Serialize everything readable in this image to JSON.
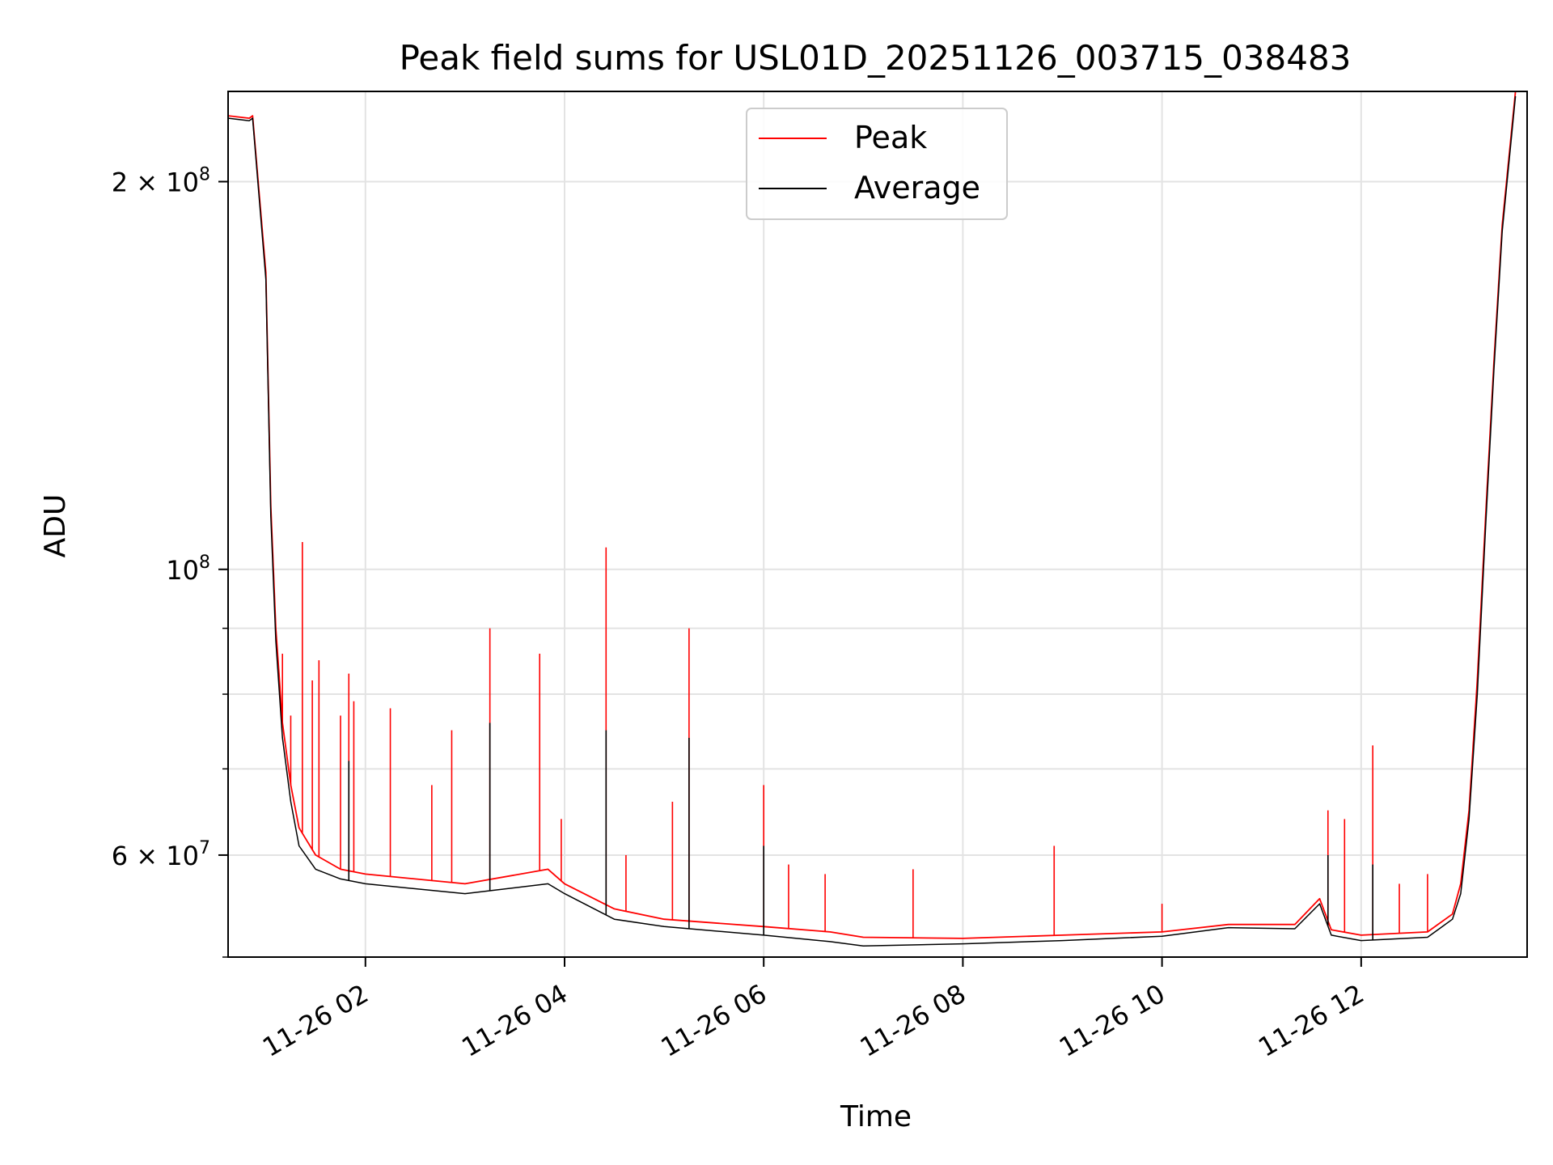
{
  "chart_data": {
    "type": "line",
    "title": "Peak field sums for USL01D_20251126_003715_038483",
    "xlabel": "Time",
    "ylabel": "ADU",
    "x_axis": {
      "type": "datetime",
      "range": [
        "2025-11-26T00:37:15",
        "2025-11-26T13:40:00"
      ],
      "ticks": [
        {
          "value": "2025-11-26T02:00:00",
          "label": "11-26 02"
        },
        {
          "value": "2025-11-26T04:00:00",
          "label": "11-26 04"
        },
        {
          "value": "2025-11-26T06:00:00",
          "label": "11-26 06"
        },
        {
          "value": "2025-11-26T08:00:00",
          "label": "11-26 08"
        },
        {
          "value": "2025-11-26T10:00:00",
          "label": "11-26 10"
        },
        {
          "value": "2025-11-26T12:00:00",
          "label": "11-26 12"
        }
      ]
    },
    "y_axis": {
      "scale": "log",
      "range": [
        50000000,
        235000000
      ],
      "major_ticks": [
        {
          "value": 60000000,
          "label_mantissa": "6",
          "label_base": "10",
          "label_exp": "7"
        },
        {
          "value": 100000000,
          "label_mantissa": "",
          "label_base": "10",
          "label_exp": "8"
        },
        {
          "value": 200000000,
          "label_mantissa": "2",
          "label_base": "10",
          "label_exp": "8"
        }
      ],
      "minor_ticks": [
        50000000,
        70000000,
        80000000,
        90000000
      ]
    },
    "grid": true,
    "legend": {
      "placement": "top-center"
    },
    "series": [
      {
        "name": "Peak",
        "color": "#ff0000",
        "points": [
          [
            "2025-11-26T00:37:15",
            225000000
          ],
          [
            "2025-11-26T00:50:00",
            224000000
          ],
          [
            "2025-11-26T00:52:00",
            225000000
          ],
          [
            "2025-11-26T01:00:00",
            170000000
          ],
          [
            "2025-11-26T01:03:00",
            112000000
          ],
          [
            "2025-11-26T01:06:00",
            90000000
          ],
          [
            "2025-11-26T01:10:00",
            76000000
          ],
          [
            "2025-11-26T01:15:00",
            68000000
          ],
          [
            "2025-11-26T01:20:00",
            63000000
          ],
          [
            "2025-11-26T01:30:00",
            60000000
          ],
          [
            "2025-11-26T01:45:00",
            58500000
          ],
          [
            "2025-11-26T02:00:00",
            58000000
          ],
          [
            "2025-11-26T03:00:00",
            57000000
          ],
          [
            "2025-11-26T03:50:00",
            58500000
          ],
          [
            "2025-11-26T04:00:00",
            57000000
          ],
          [
            "2025-11-26T04:30:00",
            54500000
          ],
          [
            "2025-11-26T05:00:00",
            53500000
          ],
          [
            "2025-11-26T06:00:00",
            52800000
          ],
          [
            "2025-11-26T06:40:00",
            52300000
          ],
          [
            "2025-11-26T07:00:00",
            51800000
          ],
          [
            "2025-11-26T08:00:00",
            51700000
          ],
          [
            "2025-11-26T09:00:00",
            52000000
          ],
          [
            "2025-11-26T10:00:00",
            52300000
          ],
          [
            "2025-11-26T10:40:00",
            53000000
          ],
          [
            "2025-11-26T11:20:00",
            53000000
          ],
          [
            "2025-11-26T11:35:00",
            55500000
          ],
          [
            "2025-11-26T11:42:00",
            52500000
          ],
          [
            "2025-11-26T12:00:00",
            52000000
          ],
          [
            "2025-11-26T12:40:00",
            52300000
          ],
          [
            "2025-11-26T12:55:00",
            54000000
          ],
          [
            "2025-11-26T13:00:00",
            57000000
          ],
          [
            "2025-11-26T13:05:00",
            65000000
          ],
          [
            "2025-11-26T13:10:00",
            82000000
          ],
          [
            "2025-11-26T13:15:00",
            110000000
          ],
          [
            "2025-11-26T13:20:00",
            145000000
          ],
          [
            "2025-11-26T13:25:00",
            185000000
          ],
          [
            "2025-11-26T13:30:00",
            215000000
          ],
          [
            "2025-11-26T13:33:00",
            235000000
          ]
        ],
        "spikes": [
          [
            "2025-11-26T01:10:00",
            86000000
          ],
          [
            "2025-11-26T01:15:00",
            77000000
          ],
          [
            "2025-11-26T01:22:00",
            105000000
          ],
          [
            "2025-11-26T01:28:00",
            82000000
          ],
          [
            "2025-11-26T01:32:00",
            85000000
          ],
          [
            "2025-11-26T01:45:00",
            77000000
          ],
          [
            "2025-11-26T01:50:00",
            83000000
          ],
          [
            "2025-11-26T01:53:00",
            79000000
          ],
          [
            "2025-11-26T02:15:00",
            78000000
          ],
          [
            "2025-11-26T02:40:00",
            68000000
          ],
          [
            "2025-11-26T02:52:00",
            75000000
          ],
          [
            "2025-11-26T03:15:00",
            90000000
          ],
          [
            "2025-11-26T03:45:00",
            86000000
          ],
          [
            "2025-11-26T03:58:00",
            64000000
          ],
          [
            "2025-11-26T04:25:00",
            104000000
          ],
          [
            "2025-11-26T04:37:00",
            60000000
          ],
          [
            "2025-11-26T05:05:00",
            66000000
          ],
          [
            "2025-11-26T05:15:00",
            90000000
          ],
          [
            "2025-11-26T06:00:00",
            68000000
          ],
          [
            "2025-11-26T06:15:00",
            59000000
          ],
          [
            "2025-11-26T06:37:00",
            58000000
          ],
          [
            "2025-11-26T07:30:00",
            58500000
          ],
          [
            "2025-11-26T08:55:00",
            61000000
          ],
          [
            "2025-11-26T10:00:00",
            55000000
          ],
          [
            "2025-11-26T11:40:00",
            65000000
          ],
          [
            "2025-11-26T11:50:00",
            64000000
          ],
          [
            "2025-11-26T12:07:00",
            73000000
          ],
          [
            "2025-11-26T12:23:00",
            57000000
          ],
          [
            "2025-11-26T12:40:00",
            58000000
          ]
        ]
      },
      {
        "name": "Average",
        "color": "#000000",
        "points": [
          [
            "2025-11-26T00:37:15",
            224000000
          ],
          [
            "2025-11-26T00:50:00",
            223000000
          ],
          [
            "2025-11-26T00:52:00",
            224000000
          ],
          [
            "2025-11-26T01:00:00",
            168000000
          ],
          [
            "2025-11-26T01:03:00",
            110000000
          ],
          [
            "2025-11-26T01:06:00",
            88000000
          ],
          [
            "2025-11-26T01:10:00",
            74000000
          ],
          [
            "2025-11-26T01:15:00",
            66000000
          ],
          [
            "2025-11-26T01:20:00",
            61000000
          ],
          [
            "2025-11-26T01:30:00",
            58500000
          ],
          [
            "2025-11-26T01:45:00",
            57500000
          ],
          [
            "2025-11-26T02:00:00",
            57000000
          ],
          [
            "2025-11-26T03:00:00",
            56000000
          ],
          [
            "2025-11-26T03:50:00",
            57000000
          ],
          [
            "2025-11-26T04:00:00",
            56000000
          ],
          [
            "2025-11-26T04:30:00",
            53500000
          ],
          [
            "2025-11-26T05:00:00",
            52800000
          ],
          [
            "2025-11-26T06:00:00",
            52000000
          ],
          [
            "2025-11-26T06:40:00",
            51400000
          ],
          [
            "2025-11-26T07:00:00",
            51000000
          ],
          [
            "2025-11-26T08:00:00",
            51200000
          ],
          [
            "2025-11-26T09:00:00",
            51500000
          ],
          [
            "2025-11-26T10:00:00",
            51900000
          ],
          [
            "2025-11-26T10:40:00",
            52700000
          ],
          [
            "2025-11-26T11:20:00",
            52600000
          ],
          [
            "2025-11-26T11:35:00",
            55000000
          ],
          [
            "2025-11-26T11:42:00",
            52000000
          ],
          [
            "2025-11-26T12:00:00",
            51500000
          ],
          [
            "2025-11-26T12:40:00",
            51800000
          ],
          [
            "2025-11-26T12:55:00",
            53500000
          ],
          [
            "2025-11-26T13:00:00",
            56000000
          ],
          [
            "2025-11-26T13:05:00",
            64000000
          ],
          [
            "2025-11-26T13:10:00",
            80000000
          ],
          [
            "2025-11-26T13:15:00",
            108000000
          ],
          [
            "2025-11-26T13:20:00",
            143000000
          ],
          [
            "2025-11-26T13:25:00",
            183000000
          ],
          [
            "2025-11-26T13:30:00",
            213000000
          ],
          [
            "2025-11-26T13:33:00",
            233000000
          ]
        ],
        "spikes": [
          [
            "2025-11-26T01:50:00",
            71000000
          ],
          [
            "2025-11-26T03:15:00",
            76000000
          ],
          [
            "2025-11-26T04:25:00",
            75000000
          ],
          [
            "2025-11-26T05:15:00",
            74000000
          ],
          [
            "2025-11-26T06:00:00",
            61000000
          ],
          [
            "2025-11-26T11:40:00",
            60000000
          ],
          [
            "2025-11-26T12:07:00",
            59000000
          ]
        ]
      }
    ]
  }
}
